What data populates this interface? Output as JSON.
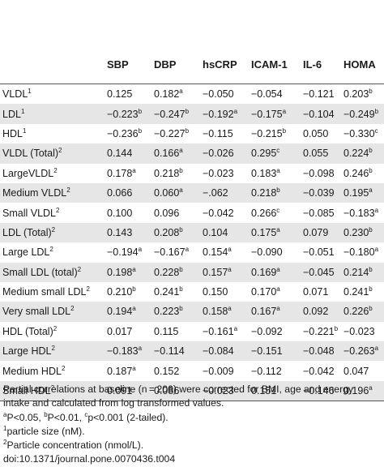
{
  "columns": [
    "",
    "SBP",
    "DBP",
    "hsCRP",
    "ICAM-1",
    "IL-6",
    "HOMA"
  ],
  "rows": [
    {
      "label": "VLDL",
      "sup": "1",
      "cells": [
        [
          "0.125",
          ""
        ],
        [
          "0.182",
          "a"
        ],
        [
          "−0.050",
          ""
        ],
        [
          "−0.054",
          ""
        ],
        [
          "−0.121",
          ""
        ],
        [
          "0.203",
          "b"
        ]
      ]
    },
    {
      "label": "LDL",
      "sup": "1",
      "cells": [
        [
          "−0.223",
          "b"
        ],
        [
          "−0.247",
          "b"
        ],
        [
          "−0.192",
          "a"
        ],
        [
          "−0.175",
          "a"
        ],
        [
          "−0.104",
          ""
        ],
        [
          "−0.249",
          "b"
        ]
      ]
    },
    {
      "label": "HDL",
      "sup": "1",
      "cells": [
        [
          "−0.236",
          "b"
        ],
        [
          "−0.227",
          "b"
        ],
        [
          "−0.115",
          ""
        ],
        [
          "−0.215",
          "b"
        ],
        [
          "0.050",
          ""
        ],
        [
          "−0.330",
          "c"
        ]
      ]
    },
    {
      "label": "VLDL (Total)",
      "sup": "2",
      "cells": [
        [
          "0.144",
          ""
        ],
        [
          "0.166",
          "a"
        ],
        [
          "−0.026",
          ""
        ],
        [
          "0.295",
          "c"
        ],
        [
          "0.055",
          ""
        ],
        [
          "0.224",
          "b"
        ]
      ]
    },
    {
      "label": "LargeVLDL",
      "sup": "2",
      "cells": [
        [
          "0.178",
          "a"
        ],
        [
          "0.218",
          "b"
        ],
        [
          "−0.023",
          ""
        ],
        [
          "0.183",
          "a"
        ],
        [
          "−0.098",
          ""
        ],
        [
          "0.246",
          "b"
        ]
      ]
    },
    {
      "label": "Medium VLDL",
      "sup": "2",
      "cells": [
        [
          "0.066",
          ""
        ],
        [
          "0.060",
          "a"
        ],
        [
          "−.062",
          ""
        ],
        [
          "0.218",
          "b"
        ],
        [
          "−0.039",
          ""
        ],
        [
          "0.195",
          "a"
        ]
      ]
    },
    {
      "label": "Small VLDL",
      "sup": "2",
      "cells": [
        [
          "0.100",
          ""
        ],
        [
          "0.096",
          ""
        ],
        [
          "−0.042",
          ""
        ],
        [
          "0.266",
          "c"
        ],
        [
          "−0.085",
          ""
        ],
        [
          "−0.183",
          "a"
        ]
      ]
    },
    {
      "label": "LDL (Total)",
      "sup": "2",
      "cells": [
        [
          "0.143",
          ""
        ],
        [
          "0.208",
          "b"
        ],
        [
          "0.104",
          ""
        ],
        [
          "0.175",
          "a"
        ],
        [
          "0.079",
          ""
        ],
        [
          "0.230",
          "b"
        ]
      ]
    },
    {
      "label": "Large LDL",
      "sup": "2",
      "cells": [
        [
          "−0.194",
          "a"
        ],
        [
          "−0.167",
          "a"
        ],
        [
          "0.154",
          "a"
        ],
        [
          "−0.090",
          ""
        ],
        [
          "−0.051",
          ""
        ],
        [
          "−0.180",
          "a"
        ]
      ]
    },
    {
      "label": "Small LDL (total)",
      "sup": "2",
      "cells": [
        [
          "0.198",
          "a"
        ],
        [
          "0.228",
          "b"
        ],
        [
          "0.157",
          "a"
        ],
        [
          "0.169",
          "a"
        ],
        [
          "−0.045",
          ""
        ],
        [
          "0.214",
          "b"
        ]
      ]
    },
    {
      "label": "Medium small LDL",
      "sup": "2",
      "cells": [
        [
          "0.210",
          "b"
        ],
        [
          "0.241",
          "b"
        ],
        [
          "0.150",
          ""
        ],
        [
          "0.170",
          "a"
        ],
        [
          "0.071",
          ""
        ],
        [
          "0.241",
          "b"
        ]
      ]
    },
    {
      "label": "Very small LDL",
      "sup": "2",
      "cells": [
        [
          "0.194",
          "a"
        ],
        [
          "0.223",
          "b"
        ],
        [
          "0.158",
          "a"
        ],
        [
          "0.167",
          "a"
        ],
        [
          "0.092",
          ""
        ],
        [
          "0.226",
          "b"
        ]
      ]
    },
    {
      "label": "HDL (Total)",
      "sup": "2",
      "cells": [
        [
          "0.017",
          ""
        ],
        [
          "0.115",
          ""
        ],
        [
          "−0.161",
          "a"
        ],
        [
          "−0.092",
          ""
        ],
        [
          "−0.221",
          "b"
        ],
        [
          "−0.023",
          ""
        ]
      ]
    },
    {
      "label": "Large HDL",
      "sup": "2",
      "cells": [
        [
          "−0.183",
          "a"
        ],
        [
          "−0.114",
          ""
        ],
        [
          "−0.084",
          ""
        ],
        [
          "−0.151",
          ""
        ],
        [
          "−0.048",
          ""
        ],
        [
          "−0.263",
          "a"
        ]
      ]
    },
    {
      "label": "Medium HDL",
      "sup": "2",
      "cells": [
        [
          "0.187",
          "a"
        ],
        [
          "0.152",
          ""
        ],
        [
          "−0.009",
          ""
        ],
        [
          "−0.112",
          ""
        ],
        [
          "−0.042",
          ""
        ],
        [
          "0.047",
          ""
        ]
      ]
    },
    {
      "label": "Small HDL",
      "sup": "2",
      "cells": [
        [
          "0.091",
          ""
        ],
        [
          "0.086",
          ""
        ],
        [
          "−0.023",
          ""
        ],
        [
          "0.151",
          ""
        ],
        [
          "−0.146",
          ""
        ],
        [
          "0.196",
          "a"
        ]
      ]
    }
  ],
  "notes": {
    "line1": "Partial correlations at baseline (n = 206) were corrected for BMI, age and energy",
    "line2": "intake and calculated from log transformed values.",
    "sig_a": "a",
    "sig_a_text": "P<0.05, ",
    "sig_b": "b",
    "sig_b_text": "P<0.01, ",
    "sig_c": "c",
    "sig_c_text": "p<0.001 (2-tailed).",
    "fn1_mark": "1",
    "fn1_text": "particle size (nM).",
    "fn2_mark": "2",
    "fn2_text": "Particle concentration (nmol/L).",
    "doi": "doi:10.1371/journal.pone.0070436.t004"
  }
}
